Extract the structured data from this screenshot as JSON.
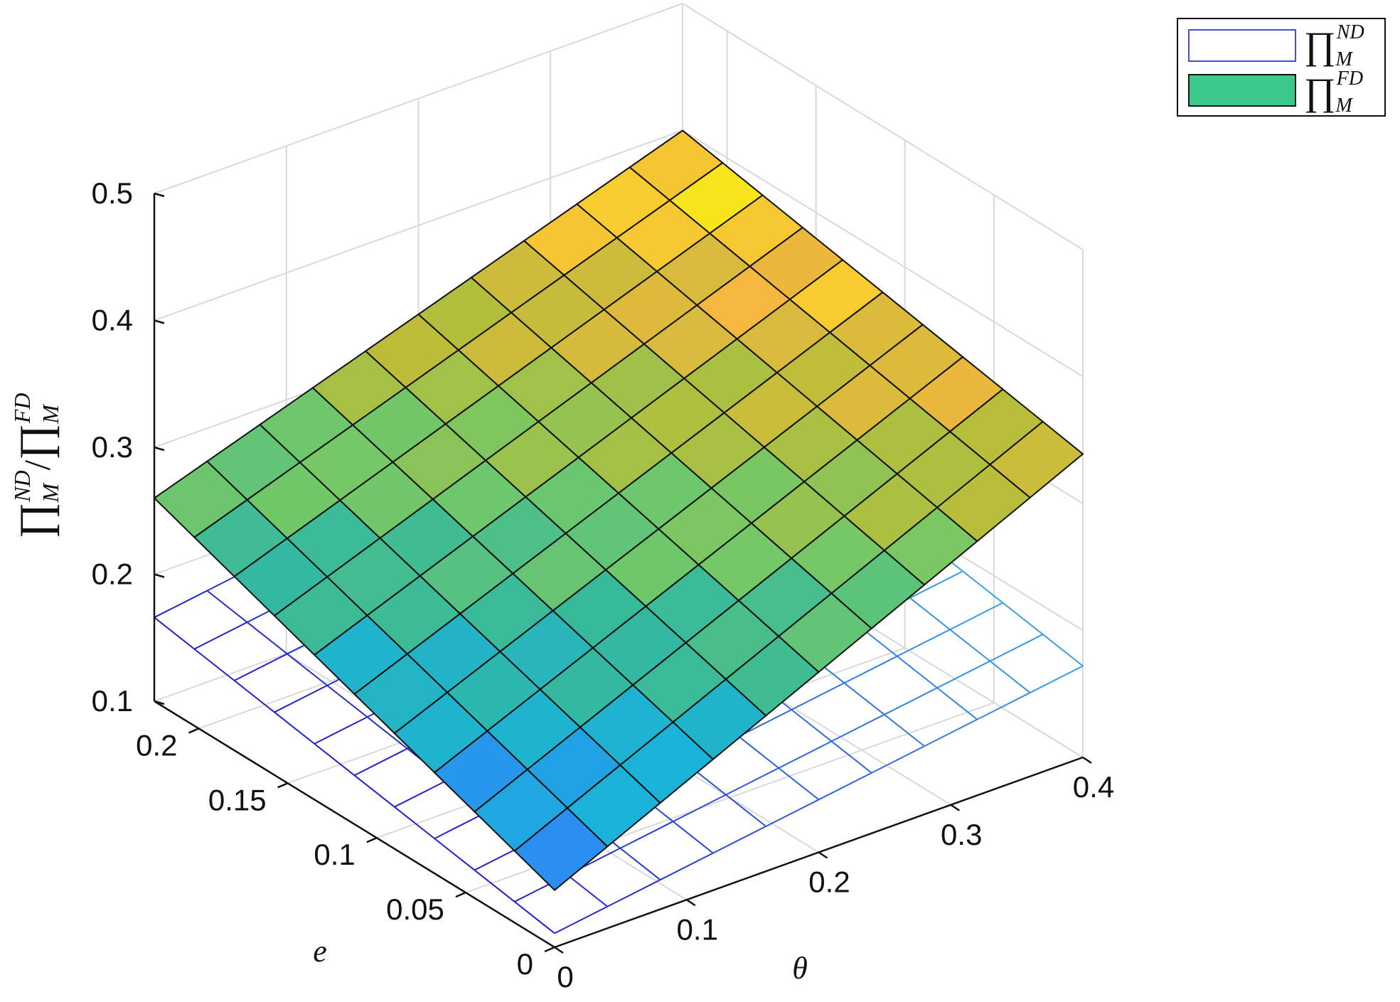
{
  "chart_data": {
    "type": "surface3d",
    "x_label": "θ",
    "y_label": "e",
    "z_label": {
      "main": "∏",
      "sub1": "M",
      "sup1": "ND",
      "sep": "/",
      "sub2": "M",
      "sup2": "FD"
    },
    "x_range": [
      0,
      0.4
    ],
    "y_range": [
      0,
      0.225
    ],
    "z_range": [
      0.1,
      0.5
    ],
    "x_ticks": [
      "0",
      "0.1",
      "0.2",
      "0.3",
      "0.4"
    ],
    "x_tick_values": [
      0,
      0.1,
      0.2,
      0.3,
      0.4
    ],
    "y_ticks": [
      "0",
      "0.05",
      "0.1",
      "0.15",
      "0.2"
    ],
    "y_tick_values": [
      0,
      0.05,
      0.1,
      0.15,
      0.2
    ],
    "z_ticks": [
      "0.1",
      "0.2",
      "0.3",
      "0.4",
      "0.5"
    ],
    "z_tick_values": [
      0.1,
      0.2,
      0.3,
      0.4,
      0.5
    ],
    "grid": true,
    "legend_position": "top-right",
    "grid_resolution": {
      "nx": 10,
      "ny": 10
    },
    "series": [
      {
        "name": "ND",
        "label": {
          "main": "∏",
          "sub": "M",
          "sup": "ND"
        },
        "style": "wireframe",
        "corners": {
          "theta0_e0": 0.111,
          "theta0_emax": 0.166,
          "thetamax_e0": 0.172,
          "thetamax_emax": 0.227
        }
      },
      {
        "name": "FD",
        "label": {
          "main": "∏",
          "sub": "M",
          "sup": "FD"
        },
        "style": "filled",
        "corners": {
          "theta0_e0": 0.145,
          "theta0_emax": 0.26,
          "thetamax_e0": 0.339,
          "thetamax_emax": 0.4
        }
      }
    ],
    "colors": {
      "nd_near": "#2020c8",
      "nd_far": "#3aa0e8",
      "colormap": [
        "#3e26a8",
        "#2e87f7",
        "#1ab2d8",
        "#36ba9b",
        "#73c868",
        "#b5be3a",
        "#f5b73d",
        "#f8fa0d"
      ],
      "legend_fd": "#3cc98c",
      "legend_nd": "#4a4ae0"
    }
  }
}
